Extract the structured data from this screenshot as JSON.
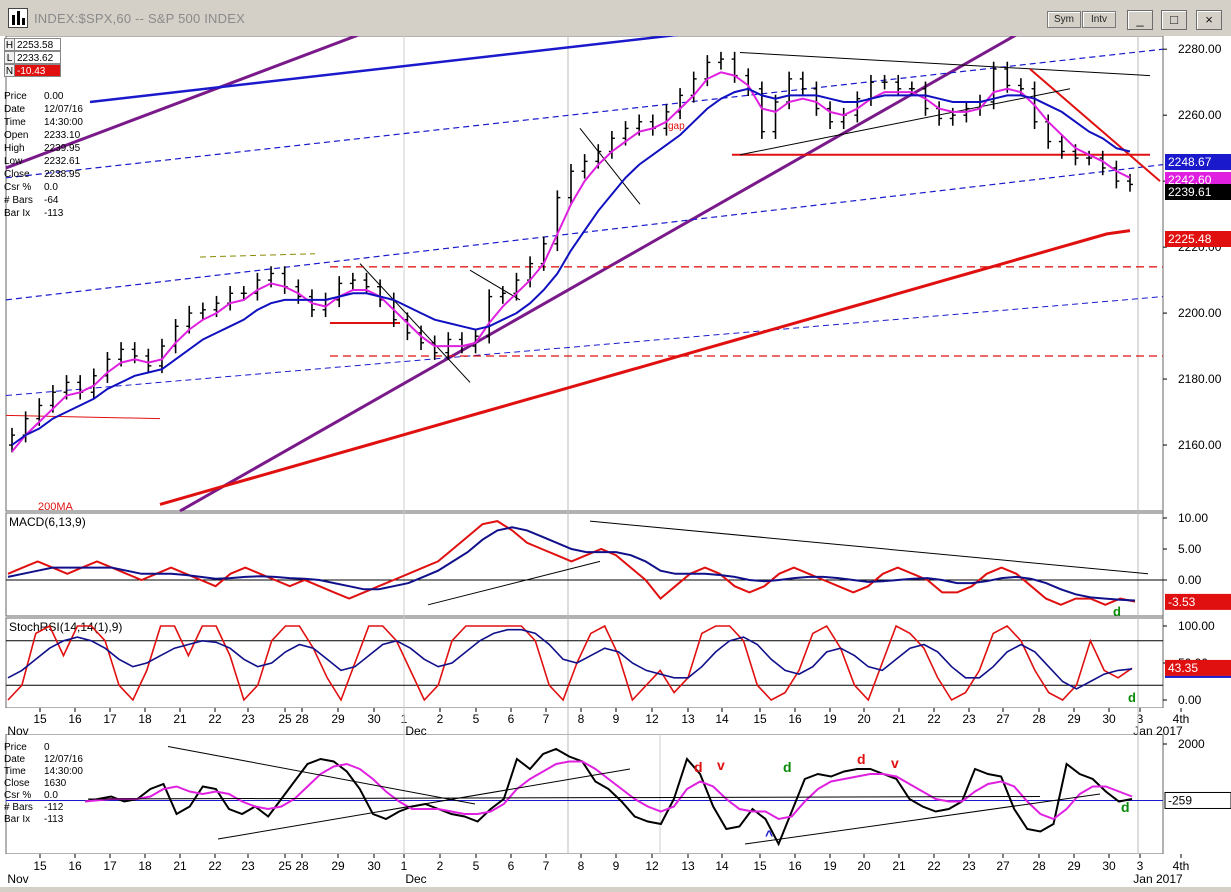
{
  "window": {
    "title": "INDEX:$SPX,60 -- S&P 500 INDEX",
    "sym_label": "Sym",
    "intv_label": "Intv",
    "minimize": "_",
    "maximize": "□",
    "close": "×"
  },
  "hl": {
    "h_tag": "H",
    "h": "2253.58",
    "l_tag": "L",
    "l": "2233.62",
    "n_tag": "N",
    "n": "-10.43"
  },
  "info": [
    {
      "k": "Price",
      "v": "0.00"
    },
    {
      "k": "Date",
      "v": "12/07/16"
    },
    {
      "k": "Time",
      "v": "14:30:00"
    },
    {
      "k": "Open",
      "v": "2233.10"
    },
    {
      "k": "High",
      "v": "2239.95"
    },
    {
      "k": "Low",
      "v": "2232.61"
    },
    {
      "k": "Close",
      "v": "2238.95"
    },
    {
      "k": "Csr %",
      "v": "0.0"
    },
    {
      "k": "# Bars",
      "v": "-64"
    },
    {
      "k": "Bar Ix",
      "v": "-113"
    }
  ],
  "info_bottom": [
    {
      "k": "Price",
      "v": "0"
    },
    {
      "k": "Date",
      "v": "12/07/16"
    },
    {
      "k": "Time",
      "v": "14:30:00"
    },
    {
      "k": "Close",
      "v": "1630"
    },
    {
      "k": "Csr %",
      "v": "0.0"
    },
    {
      "k": "# Bars",
      "v": "-112"
    },
    {
      "k": "Bar Ix",
      "v": "-113"
    }
  ],
  "colors": {
    "bars": "#000000",
    "ma_pink": "#e020e0",
    "ma_blue": "#1010c0",
    "ma200": "#e01010",
    "channel": "#7a1a8a",
    "trend_blue": "#1a1acc",
    "macd_red": "#e01010",
    "macd_blue": "#10108a"
  },
  "chart_data": [
    {
      "type": "line",
      "title": "INDEX:$SPX,60 -- S&P 500 INDEX",
      "x_ticks": [
        "15",
        "16",
        "17",
        "18",
        "21",
        "22",
        "23",
        "25",
        "28",
        "29",
        "30",
        "1",
        "2",
        "5",
        "6",
        "7",
        "8",
        "9",
        "12",
        "13",
        "14",
        "15",
        "16",
        "19",
        "20",
        "21",
        "22",
        "23",
        "27",
        "28",
        "29",
        "30",
        "3",
        "4th"
      ],
      "month_labels": [
        "Nov",
        "Dec",
        "Jan 2017"
      ],
      "ylim": [
        2140,
        2284
      ],
      "y_ticks": [
        2160.0,
        2180.0,
        2200.0,
        2220.0,
        2240.0,
        2260.0,
        2280.0
      ],
      "y_tick_labels": [
        "2160.00",
        "2180.00",
        "2200.00",
        "2220.00",
        "2240.00",
        "2260.00",
        "2280.00"
      ],
      "price_series": [
        {
          "name": "close",
          "values": [
            2163,
            2168,
            2172,
            2176,
            2179,
            2176,
            2181,
            2186,
            2189,
            2187,
            2184,
            2190,
            2196,
            2200,
            2201,
            2203,
            2206,
            2206,
            2210,
            2212,
            2208,
            2205,
            2201,
            2204,
            2209,
            2210,
            2208,
            2204,
            2198,
            2194,
            2191,
            2188,
            2192,
            2190,
            2193,
            2205,
            2206,
            2210,
            2215,
            2221,
            2235,
            2243,
            2246,
            2249,
            2253,
            2256,
            2258,
            2256,
            2261,
            2266,
            2271,
            2276,
            2277,
            2272,
            2268,
            2255,
            2264,
            2271,
            2268,
            2262,
            2258,
            2260,
            2265,
            2270,
            2270,
            2268,
            2268,
            2262,
            2259,
            2260,
            2262,
            2264,
            2274,
            2269,
            2268,
            2258,
            2252,
            2249,
            2247,
            2247,
            2244,
            2240,
            2239
          ]
        },
        {
          "name": "ma_fast",
          "values": [
            2158,
            2163,
            2167,
            2171,
            2175,
            2176,
            2178,
            2182,
            2185,
            2186,
            2185,
            2186,
            2191,
            2195,
            2198,
            2200,
            2203,
            2204,
            2207,
            2209,
            2208,
            2206,
            2203,
            2202,
            2205,
            2207,
            2207,
            2205,
            2201,
            2197,
            2193,
            2190,
            2190,
            2190,
            2191,
            2197,
            2202,
            2206,
            2210,
            2215,
            2224,
            2233,
            2240,
            2245,
            2249,
            2252,
            2255,
            2256,
            2258,
            2262,
            2266,
            2271,
            2273,
            2272,
            2269,
            2262,
            2261,
            2264,
            2265,
            2264,
            2261,
            2260,
            2262,
            2265,
            2267,
            2267,
            2267,
            2265,
            2262,
            2261,
            2261,
            2262,
            2267,
            2268,
            2267,
            2263,
            2258,
            2254,
            2250,
            2248,
            2246,
            2243,
            2241
          ]
        },
        {
          "name": "ma_slow",
          "values": [
            2160,
            2163,
            2165,
            2168,
            2170,
            2172,
            2174,
            2177,
            2179,
            2181,
            2182,
            2183,
            2186,
            2189,
            2192,
            2194,
            2196,
            2198,
            2201,
            2203,
            2204,
            2204,
            2204,
            2204,
            2205,
            2206,
            2206,
            2205,
            2204,
            2202,
            2200,
            2198,
            2197,
            2196,
            2195,
            2196,
            2198,
            2200,
            2203,
            2207,
            2212,
            2219,
            2225,
            2231,
            2236,
            2241,
            2245,
            2248,
            2251,
            2254,
            2258,
            2262,
            2265,
            2267,
            2268,
            2266,
            2265,
            2266,
            2266,
            2266,
            2265,
            2264,
            2264,
            2265,
            2266,
            2266,
            2266,
            2266,
            2265,
            2264,
            2264,
            2264,
            2265,
            2266,
            2266,
            2265,
            2263,
            2261,
            2258,
            2255,
            2253,
            2250,
            2249
          ]
        },
        {
          "name": "ma200",
          "values": [
            2142,
            2144,
            2146,
            2148,
            2150,
            2152,
            2154,
            2156,
            2158,
            2160,
            2162,
            2164,
            2166,
            2168,
            2170,
            2172,
            2174,
            2176,
            2178,
            2180,
            2182,
            2184,
            2186,
            2188,
            2190,
            2192,
            2194,
            2196,
            2198,
            2200,
            2202,
            2204,
            2206,
            2208,
            2210,
            2212,
            2214,
            2216,
            2218,
            2220,
            2222,
            2224,
            2225
          ]
        }
      ],
      "value_labels": [
        "2248.67",
        "2242.60",
        "2239.61",
        "2225.48"
      ],
      "annotations": [
        "gap",
        "200MA"
      ]
    },
    {
      "type": "line",
      "title": "MACD(6,13,9)",
      "ylim": [
        -5,
        10
      ],
      "y_tick_labels": [
        "10.00",
        "5.00",
        "0.00"
      ],
      "value_labels": [
        "-3.53"
      ],
      "annotations": [
        "d"
      ]
    },
    {
      "type": "line",
      "title": "StochRSI(14,14(1),9)",
      "ylim": [
        0,
        100
      ],
      "y_tick_labels": [
        "100.00",
        "50.00",
        "0.00"
      ],
      "value_labels": [
        "43.35"
      ],
      "annotations": [
        "d"
      ]
    },
    {
      "type": "line",
      "title": "",
      "y_tick_labels": [
        "2000"
      ],
      "value_labels": [
        "-259"
      ],
      "annotations": [
        "d",
        "v",
        "d",
        "d",
        "v",
        "^",
        "d"
      ]
    }
  ]
}
